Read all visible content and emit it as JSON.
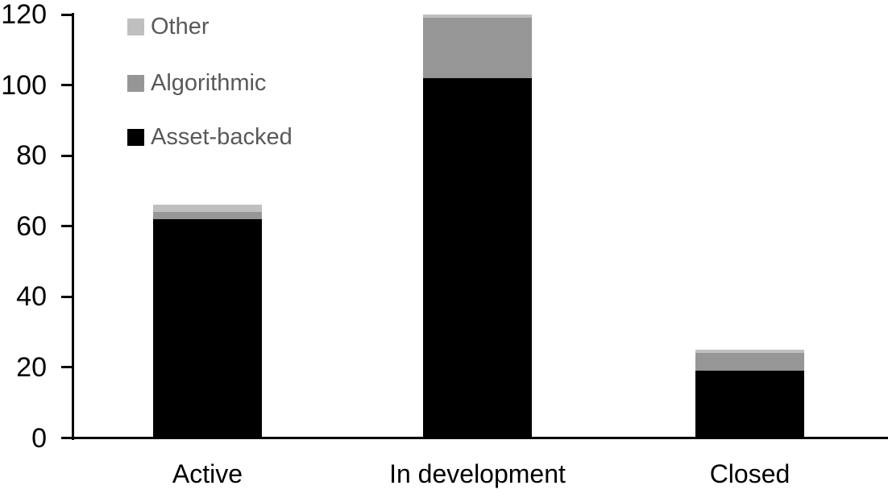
{
  "chart_data": {
    "type": "bar",
    "stacked": true,
    "title": "",
    "xlabel": "",
    "ylabel": "",
    "categories": [
      "Active",
      "In development",
      "Closed"
    ],
    "series": [
      {
        "name": "Asset-backed",
        "color": "#000000",
        "values": [
          62,
          102,
          19
        ]
      },
      {
        "name": "Algorithmic",
        "color": "#969696",
        "values": [
          2,
          17,
          5
        ]
      },
      {
        "name": "Other",
        "color": "#bfbfbf",
        "values": [
          2,
          1,
          1
        ]
      }
    ],
    "stack_totals": [
      66,
      120,
      25
    ],
    "ylim": [
      0,
      120
    ],
    "yticks": [
      0,
      20,
      40,
      60,
      80,
      100,
      120
    ],
    "grid": false,
    "legend_position": "top-left",
    "legend_order_top_to_bottom": [
      "Other",
      "Algorithmic",
      "Asset-backed"
    ]
  },
  "colors": {
    "background": "#ffffff",
    "axis_line": "#000000",
    "tick_label_text": "#000000",
    "category_label_text": "#000000",
    "legend_text": "#595959"
  }
}
